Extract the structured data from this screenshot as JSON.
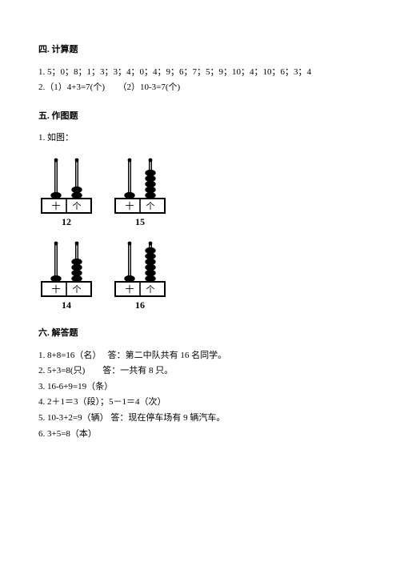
{
  "section4": {
    "title": "四. 计算题",
    "line1": "1. 5；0；8；1；3；3；4；0；4；9；6；7；5；9；10；4；10；6；3；4",
    "line2": "2.（1）4+3=7(个)　　（2）10-3=7(个)"
  },
  "section5": {
    "title": "五. 作图题",
    "line1": "1. 如图：",
    "abacus": {
      "stroke": "#000000",
      "fill_bead": "#000000",
      "fill_bg": "#ffffff",
      "label_tens": "十",
      "label_ones": "个",
      "font_size_label": 11,
      "font_size_num": 12,
      "items": [
        {
          "tens": 1,
          "ones": 2,
          "number": "12"
        },
        {
          "tens": 1,
          "ones": 5,
          "number": "15"
        },
        {
          "tens": 1,
          "ones": 4,
          "number": "14"
        },
        {
          "tens": 1,
          "ones": 6,
          "number": "16"
        }
      ]
    }
  },
  "section6": {
    "title": "六. 解答题",
    "lines": [
      "1. 8+8=16（名）　 答：第二中队共有 16 名同学。",
      "2. 5+3=8(只)　　答：一共有 8 只。",
      "3. 16-6+9=19（条）",
      "4. 2＋1＝3（段）；5－1＝4（次）",
      "5. 10-3+2=9（辆） 答：现在停车场有 9 辆汽车。",
      "6. 3+5=8（本）"
    ]
  }
}
